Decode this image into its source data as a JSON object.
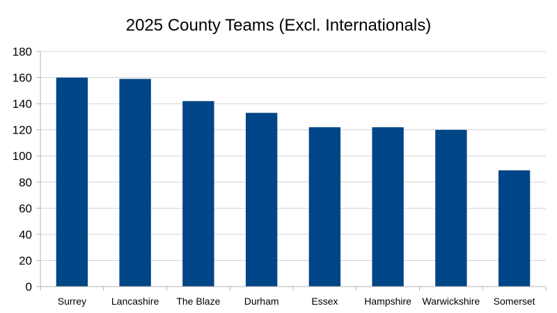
{
  "chart_data": {
    "type": "bar",
    "title": "2025 County Teams (Excl. Internationals)",
    "categories": [
      "Surrey",
      "Lancashire",
      "The Blaze",
      "Durham",
      "Essex",
      "Hampshire",
      "Warwickshire",
      "Somerset"
    ],
    "values": [
      160,
      159,
      142,
      133,
      122,
      122,
      120,
      89
    ],
    "xlabel": "",
    "ylabel": "",
    "ylim": [
      0,
      180
    ],
    "yticks": [
      0,
      20,
      40,
      60,
      80,
      100,
      120,
      140,
      160,
      180
    ],
    "grid": true,
    "legend": "none",
    "bar_color": "#004586"
  }
}
